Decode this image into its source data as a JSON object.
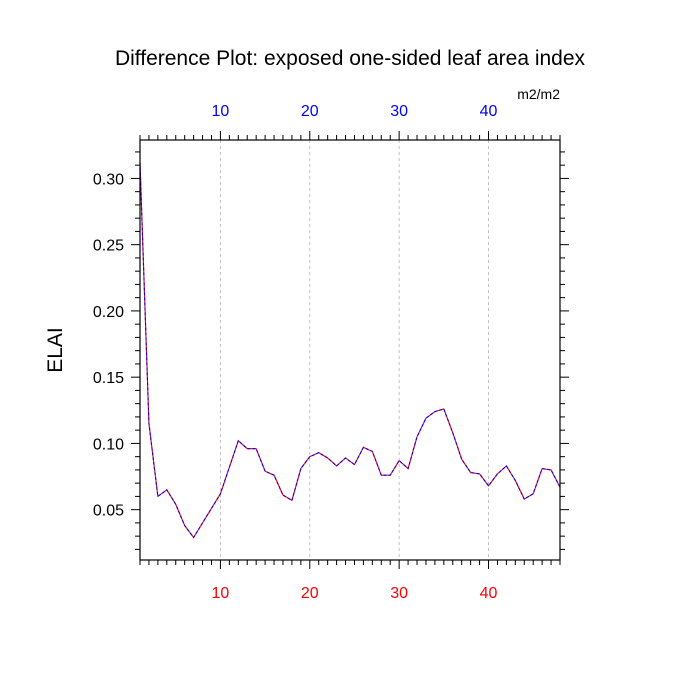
{
  "chart_data": {
    "type": "line",
    "title": "Difference Plot: exposed one-sided leaf area index",
    "units": "m2/m2",
    "ylabel": "ELAI",
    "xlabel": "",
    "xlim": [
      1,
      48
    ],
    "ylim": [
      0.012,
      0.329
    ],
    "yticks": [
      0.05,
      0.1,
      0.15,
      0.2,
      0.25,
      0.3
    ],
    "ytick_labels": [
      "0.05",
      "0.10",
      "0.15",
      "0.20",
      "0.25",
      "0.30"
    ],
    "xticks": [
      10,
      20,
      30,
      40
    ],
    "xtick_labels_top": [
      "10",
      "20",
      "30",
      "40"
    ],
    "xtick_labels_bottom": [
      "10",
      "20",
      "30",
      "40"
    ],
    "x_minor_step": 1,
    "y_minor_step": 0.01,
    "grid": "vertical dashed at major x ticks",
    "colors": {
      "top_tick_labels": "#0000ff",
      "bottom_tick_labels": "#ff0000",
      "line_a": "#ff0000",
      "line_b": "#0000ff",
      "grid": "#b4b4b4",
      "axes": "#000000"
    },
    "series": [
      {
        "color": "#ff0000",
        "x": [
          1,
          2,
          3,
          4,
          5,
          6,
          7,
          8,
          9,
          10,
          11,
          12,
          13,
          14,
          15,
          16,
          17,
          18,
          19,
          20,
          21,
          22,
          23,
          24,
          25,
          26,
          27,
          28,
          29,
          30,
          31,
          32,
          33,
          34,
          35,
          36,
          37,
          38,
          39,
          40,
          41,
          42,
          43,
          44,
          45,
          46,
          47,
          48
        ],
        "values": [
          0.312,
          0.115,
          0.06,
          0.065,
          0.054,
          0.038,
          0.029,
          0.04,
          0.051,
          0.062,
          0.082,
          0.102,
          0.096,
          0.096,
          0.079,
          0.076,
          0.061,
          0.057,
          0.081,
          0.09,
          0.093,
          0.089,
          0.083,
          0.089,
          0.084,
          0.097,
          0.094,
          0.076,
          0.076,
          0.087,
          0.081,
          0.105,
          0.119,
          0.124,
          0.126,
          0.108,
          0.088,
          0.078,
          0.077,
          0.068,
          0.077,
          0.083,
          0.072,
          0.058,
          0.062,
          0.081,
          0.08,
          0.067
        ]
      },
      {
        "color": "#0000ff",
        "x": [
          1,
          2,
          3,
          4,
          5,
          6,
          7,
          8,
          9,
          10,
          11,
          12,
          13,
          14,
          15,
          16,
          17,
          18,
          19,
          20,
          21,
          22,
          23,
          24,
          25,
          26,
          27,
          28,
          29,
          30,
          31,
          32,
          33,
          34,
          35,
          36,
          37,
          38,
          39,
          40,
          41,
          42,
          43,
          44,
          45,
          46,
          47,
          48
        ],
        "values": [
          0.312,
          0.115,
          0.06,
          0.065,
          0.054,
          0.038,
          0.029,
          0.04,
          0.051,
          0.062,
          0.082,
          0.102,
          0.096,
          0.096,
          0.079,
          0.076,
          0.061,
          0.057,
          0.081,
          0.09,
          0.093,
          0.089,
          0.083,
          0.089,
          0.084,
          0.097,
          0.094,
          0.076,
          0.076,
          0.087,
          0.081,
          0.105,
          0.119,
          0.124,
          0.126,
          0.108,
          0.088,
          0.078,
          0.077,
          0.068,
          0.077,
          0.083,
          0.072,
          0.058,
          0.062,
          0.081,
          0.08,
          0.067
        ]
      }
    ]
  }
}
